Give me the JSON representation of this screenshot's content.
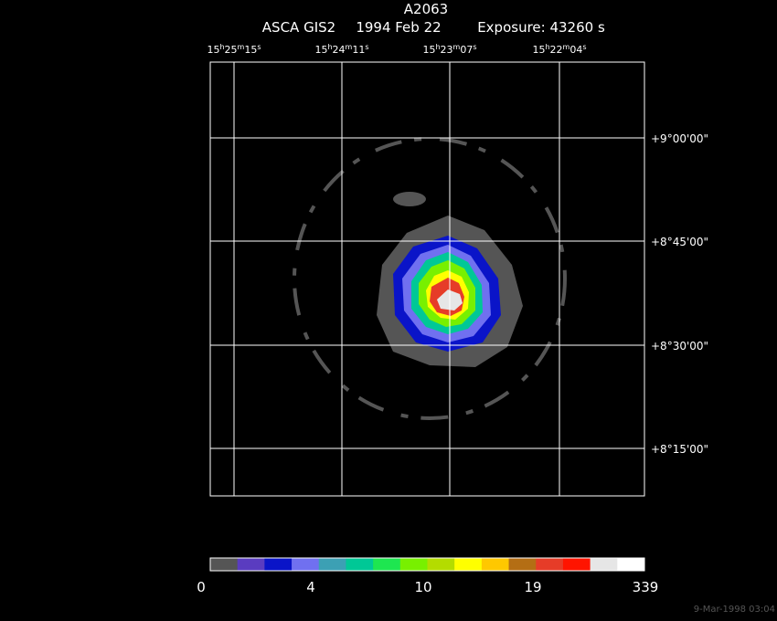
{
  "header": {
    "title": "A2063",
    "instrument": "ASCA GIS2",
    "date": "1994 Feb 22",
    "exposure": "Exposure: 43260 s"
  },
  "ra_units": [
    "h",
    "m",
    "s"
  ],
  "ra_labels": [
    {
      "hours": "15",
      "minutes": "25",
      "seconds": "15"
    },
    {
      "hours": "15",
      "minutes": "24",
      "seconds": "11"
    },
    {
      "hours": "15",
      "minutes": "23",
      "seconds": "07"
    },
    {
      "hours": "15",
      "minutes": "22",
      "seconds": "04"
    }
  ],
  "dec_labels": [
    "+9°00'00\"",
    "+8°45'00\"",
    "+8°30'00\"",
    "+8°15'00\""
  ],
  "colorbar": {
    "labels": [
      "0",
      "4",
      "10",
      "19",
      "339"
    ],
    "colors": [
      "#555555",
      "#5a3cc0",
      "#0a14c8",
      "#7070f0",
      "#3ca0b4",
      "#00c896",
      "#1ee650",
      "#78f000",
      "#b4dc00",
      "#ffff00",
      "#ffc800",
      "#b46e14",
      "#e63c28",
      "#ff1400",
      "#e6e6e6",
      "#ffffff"
    ]
  },
  "timestamp": "9-Mar-1998 03:04"
}
